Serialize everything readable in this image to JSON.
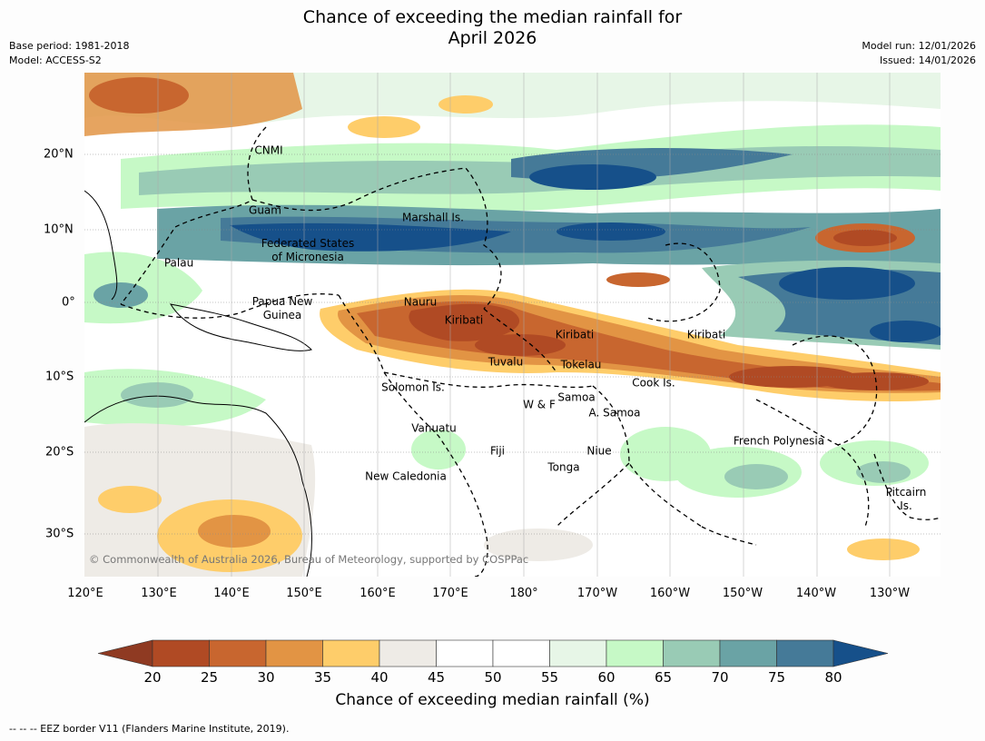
{
  "title": {
    "line1": "Chance of exceeding the median rainfall for",
    "line2": "April 2026"
  },
  "meta": {
    "base_period": "Base period: 1981-2018",
    "model": "Model: ACCESS-S2",
    "model_run": "Model run: 12/01/2026",
    "issued": "Issued: 14/01/2026"
  },
  "lon_labels": [
    "120°E",
    "130°E",
    "140°E",
    "150°E",
    "160°E",
    "170°E",
    "180°",
    "170°W",
    "160°W",
    "150°W",
    "140°W",
    "130°W"
  ],
  "lat_labels": [
    "20°N",
    "10°N",
    "0°",
    "10°S",
    "20°S",
    "30°S"
  ],
  "places": [
    {
      "key": "cnmi",
      "text": "CNMI"
    },
    {
      "key": "guam",
      "text": "Guam"
    },
    {
      "key": "marshall",
      "text": "Marshall Is."
    },
    {
      "key": "fsm",
      "text": "Federated States\nof Micronesia"
    },
    {
      "key": "palau",
      "text": "Palau"
    },
    {
      "key": "png",
      "text": "Papua New\nGuinea"
    },
    {
      "key": "nauru",
      "text": "Nauru"
    },
    {
      "key": "kiribati1",
      "text": "Kiribati"
    },
    {
      "key": "kiribati2",
      "text": "Kiribati"
    },
    {
      "key": "kiribati3",
      "text": "Kiribati"
    },
    {
      "key": "tuvalu",
      "text": "Tuvalu"
    },
    {
      "key": "tokelau",
      "text": "Tokelau"
    },
    {
      "key": "cook",
      "text": "Cook Is."
    },
    {
      "key": "solomon",
      "text": "Solomon Is."
    },
    {
      "key": "samoa",
      "text": "Samoa"
    },
    {
      "key": "wf",
      "text": "W & F"
    },
    {
      "key": "asamoa",
      "text": "A. Samoa"
    },
    {
      "key": "vanuatu",
      "text": "Vanuatu"
    },
    {
      "key": "fiji",
      "text": "Fiji"
    },
    {
      "key": "niue",
      "text": "Niue"
    },
    {
      "key": "tonga",
      "text": "Tonga"
    },
    {
      "key": "newcal",
      "text": "New Caledonia"
    },
    {
      "key": "frpoly",
      "text": "French Polynesia"
    },
    {
      "key": "pitcairn",
      "text": "Pitcairn\nIs."
    }
  ],
  "copyright": "© Commonwealth of Australia 2026, Bureau of Meteorology, supported by COSPPac",
  "colorbar": {
    "ticks": [
      "20",
      "25",
      "30",
      "35",
      "40",
      "45",
      "50",
      "55",
      "60",
      "65",
      "70",
      "75",
      "80"
    ],
    "colors": [
      "#8f3a22",
      "#b04a24",
      "#c8662f",
      "#e29444",
      "#fecd6a",
      "#eeebe6",
      "#ffffff",
      "#ffffff",
      "#e7f6e7",
      "#c6f9c6",
      "#99cbb5",
      "#6aa3a5",
      "#457a98",
      "#16508a"
    ],
    "label": "Chance of exceeding median rainfall (%)"
  },
  "footnote": "--  --  -- EEZ border V11 (Flanders Marine Institute, 2019)."
}
